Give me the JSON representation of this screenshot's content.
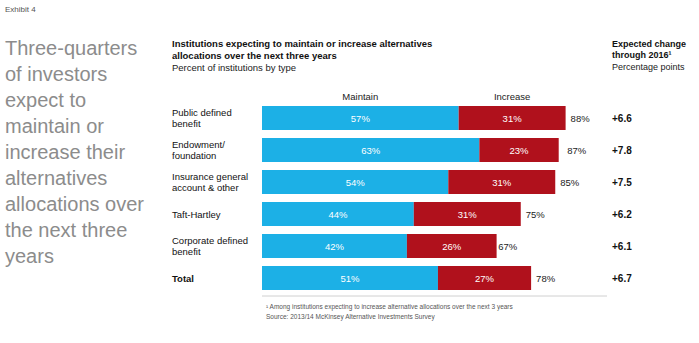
{
  "chart_data": {
    "type": "bar",
    "orientation": "horizontal",
    "stacked": true,
    "data_labels": true,
    "tick_labels": "y",
    "exhibit": "Exhibit 4",
    "headline": [
      "Three-quarters",
      "of investors",
      "expect to",
      "maintain or",
      "increase their",
      "alternatives",
      "allocations over",
      "the next three",
      "years"
    ],
    "title": "Institutions expecting to maintain or increase alternatives allocations over the next three years",
    "subtitle": "Percent of institutions by type",
    "categories": [
      "Public defined benefit",
      "Endowment/ foundation",
      "Insurance general account & other",
      "Taft-Hartley",
      "Corporate defined benefit",
      "Total"
    ],
    "xlim": [
      0,
      100
    ],
    "series": [
      {
        "name": "Maintain",
        "color": "#1cb0e6",
        "values": [
          57,
          63,
          54,
          44,
          42,
          51
        ],
        "value_labels": [
          "57%",
          "63%",
          "54%",
          "44%",
          "42%",
          "51%"
        ]
      },
      {
        "name": "Increase",
        "color": "#b0111c",
        "values": [
          31,
          23,
          31,
          31,
          26,
          27
        ],
        "value_labels": [
          "31%",
          "23%",
          "31%",
          "31%",
          "26%",
          "27%"
        ]
      }
    ],
    "totals": {
      "values": [
        88,
        87,
        85,
        75,
        67,
        78
      ],
      "value_labels": [
        "88%",
        "87%",
        "85%",
        "75%",
        "67%",
        "78%"
      ]
    },
    "expected_change": {
      "title": "Expected change through 2016¹",
      "subtitle": "Percentage points",
      "values": [
        6.6,
        7.8,
        7.5,
        6.2,
        6.1,
        6.7
      ],
      "value_labels": [
        "+6.6",
        "+7.8",
        "+7.5",
        "+6.2",
        "+6.1",
        "+6.7"
      ]
    },
    "footnote": "¹ Among institutions expecting to increase alternative allocations over the next 3 years",
    "source": "Source: 2013/14 McKinsey Alternative Investments Survey"
  }
}
